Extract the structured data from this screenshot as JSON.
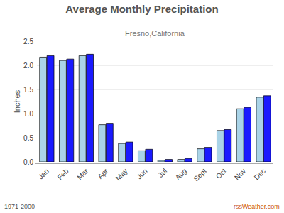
{
  "chart_data": {
    "type": "bar",
    "title": "Average Monthly Precipitation",
    "subtitle": "Fresno,California",
    "ylabel": "Inches",
    "categories": [
      "Jan",
      "Feb",
      "Mar",
      "Apr",
      "May",
      "Jun",
      "Jul",
      "Aug",
      "Sept",
      "Oct",
      "Nov",
      "Dec"
    ],
    "series": [
      {
        "color": "#aad4e8",
        "values": [
          2.17,
          2.1,
          2.2,
          0.77,
          0.38,
          0.23,
          0.03,
          0.05,
          0.27,
          0.65,
          1.1,
          1.34
        ]
      },
      {
        "color": "#1a1aff",
        "values": [
          2.2,
          2.13,
          2.23,
          0.8,
          0.41,
          0.26,
          0.05,
          0.07,
          0.3,
          0.67,
          1.13,
          1.37
        ]
      }
    ],
    "ylim": [
      0,
      2.5
    ],
    "yticks": [
      {
        "value": 0,
        "label": "0.0"
      },
      0.5,
      {
        "value": 1,
        "label": "1.0"
      },
      1.5,
      {
        "value": 2,
        "label": "2.0"
      },
      2.5
    ],
    "grid": true,
    "annotations": [
      "1971-2000",
      "rssWeather.com"
    ]
  }
}
